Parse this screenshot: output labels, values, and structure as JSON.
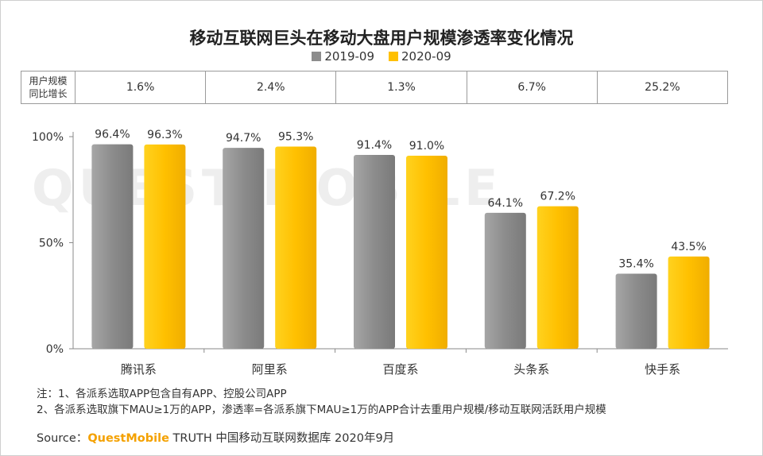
{
  "title": "移动互联网巨头在移动大盘用户规模渗透率变化情况",
  "watermark": "QUEST MOBILE",
  "legend": [
    {
      "label": "2019-09",
      "color": "#8c8c8c"
    },
    {
      "label": "2020-09",
      "color": "#ffc000"
    }
  ],
  "growth_table": {
    "label": "用户规模同比增长",
    "values": [
      "1.6%",
      "2.4%",
      "1.3%",
      "6.7%",
      "25.2%"
    ]
  },
  "chart_data": {
    "type": "bar",
    "title": "移动互联网巨头在移动大盘用户规模渗透率变化情况",
    "categories": [
      "腾讯系",
      "阿里系",
      "百度系",
      "头条系",
      "快手系"
    ],
    "series": [
      {
        "name": "2019-09",
        "values": [
          96.4,
          94.7,
          91.4,
          64.1,
          35.4
        ],
        "labels": [
          "96.4%",
          "94.7%",
          "91.4%",
          "64.1%",
          "35.4%"
        ],
        "color": "#8c8c8c"
      },
      {
        "name": "2020-09",
        "values": [
          96.3,
          95.3,
          91.0,
          67.2,
          43.5
        ],
        "labels": [
          "96.3%",
          "95.3%",
          "91.0%",
          "67.2%",
          "43.5%"
        ],
        "color": "#ffc000"
      }
    ],
    "yticks": [
      {
        "value": 0,
        "label": "0%"
      },
      {
        "value": 50,
        "label": "50%"
      },
      {
        "value": 100,
        "label": "100%"
      }
    ],
    "ylim": [
      0,
      100
    ],
    "grid": false,
    "legend_position": "top-center"
  },
  "notes": [
    "注：1、各派系选取APP包含自有APP、控股公司APP",
    "2、各派系选取旗下MAU≥1万的APP，渗透率=各派系旗下MAU≥1万的APP合计去重用户规模/移动互联网活跃用户规模"
  ],
  "source": {
    "prefix": "Source：",
    "brand": "QuestMobile",
    "rest": " TRUTH 中国移动互联网数据库 2020年9月"
  }
}
